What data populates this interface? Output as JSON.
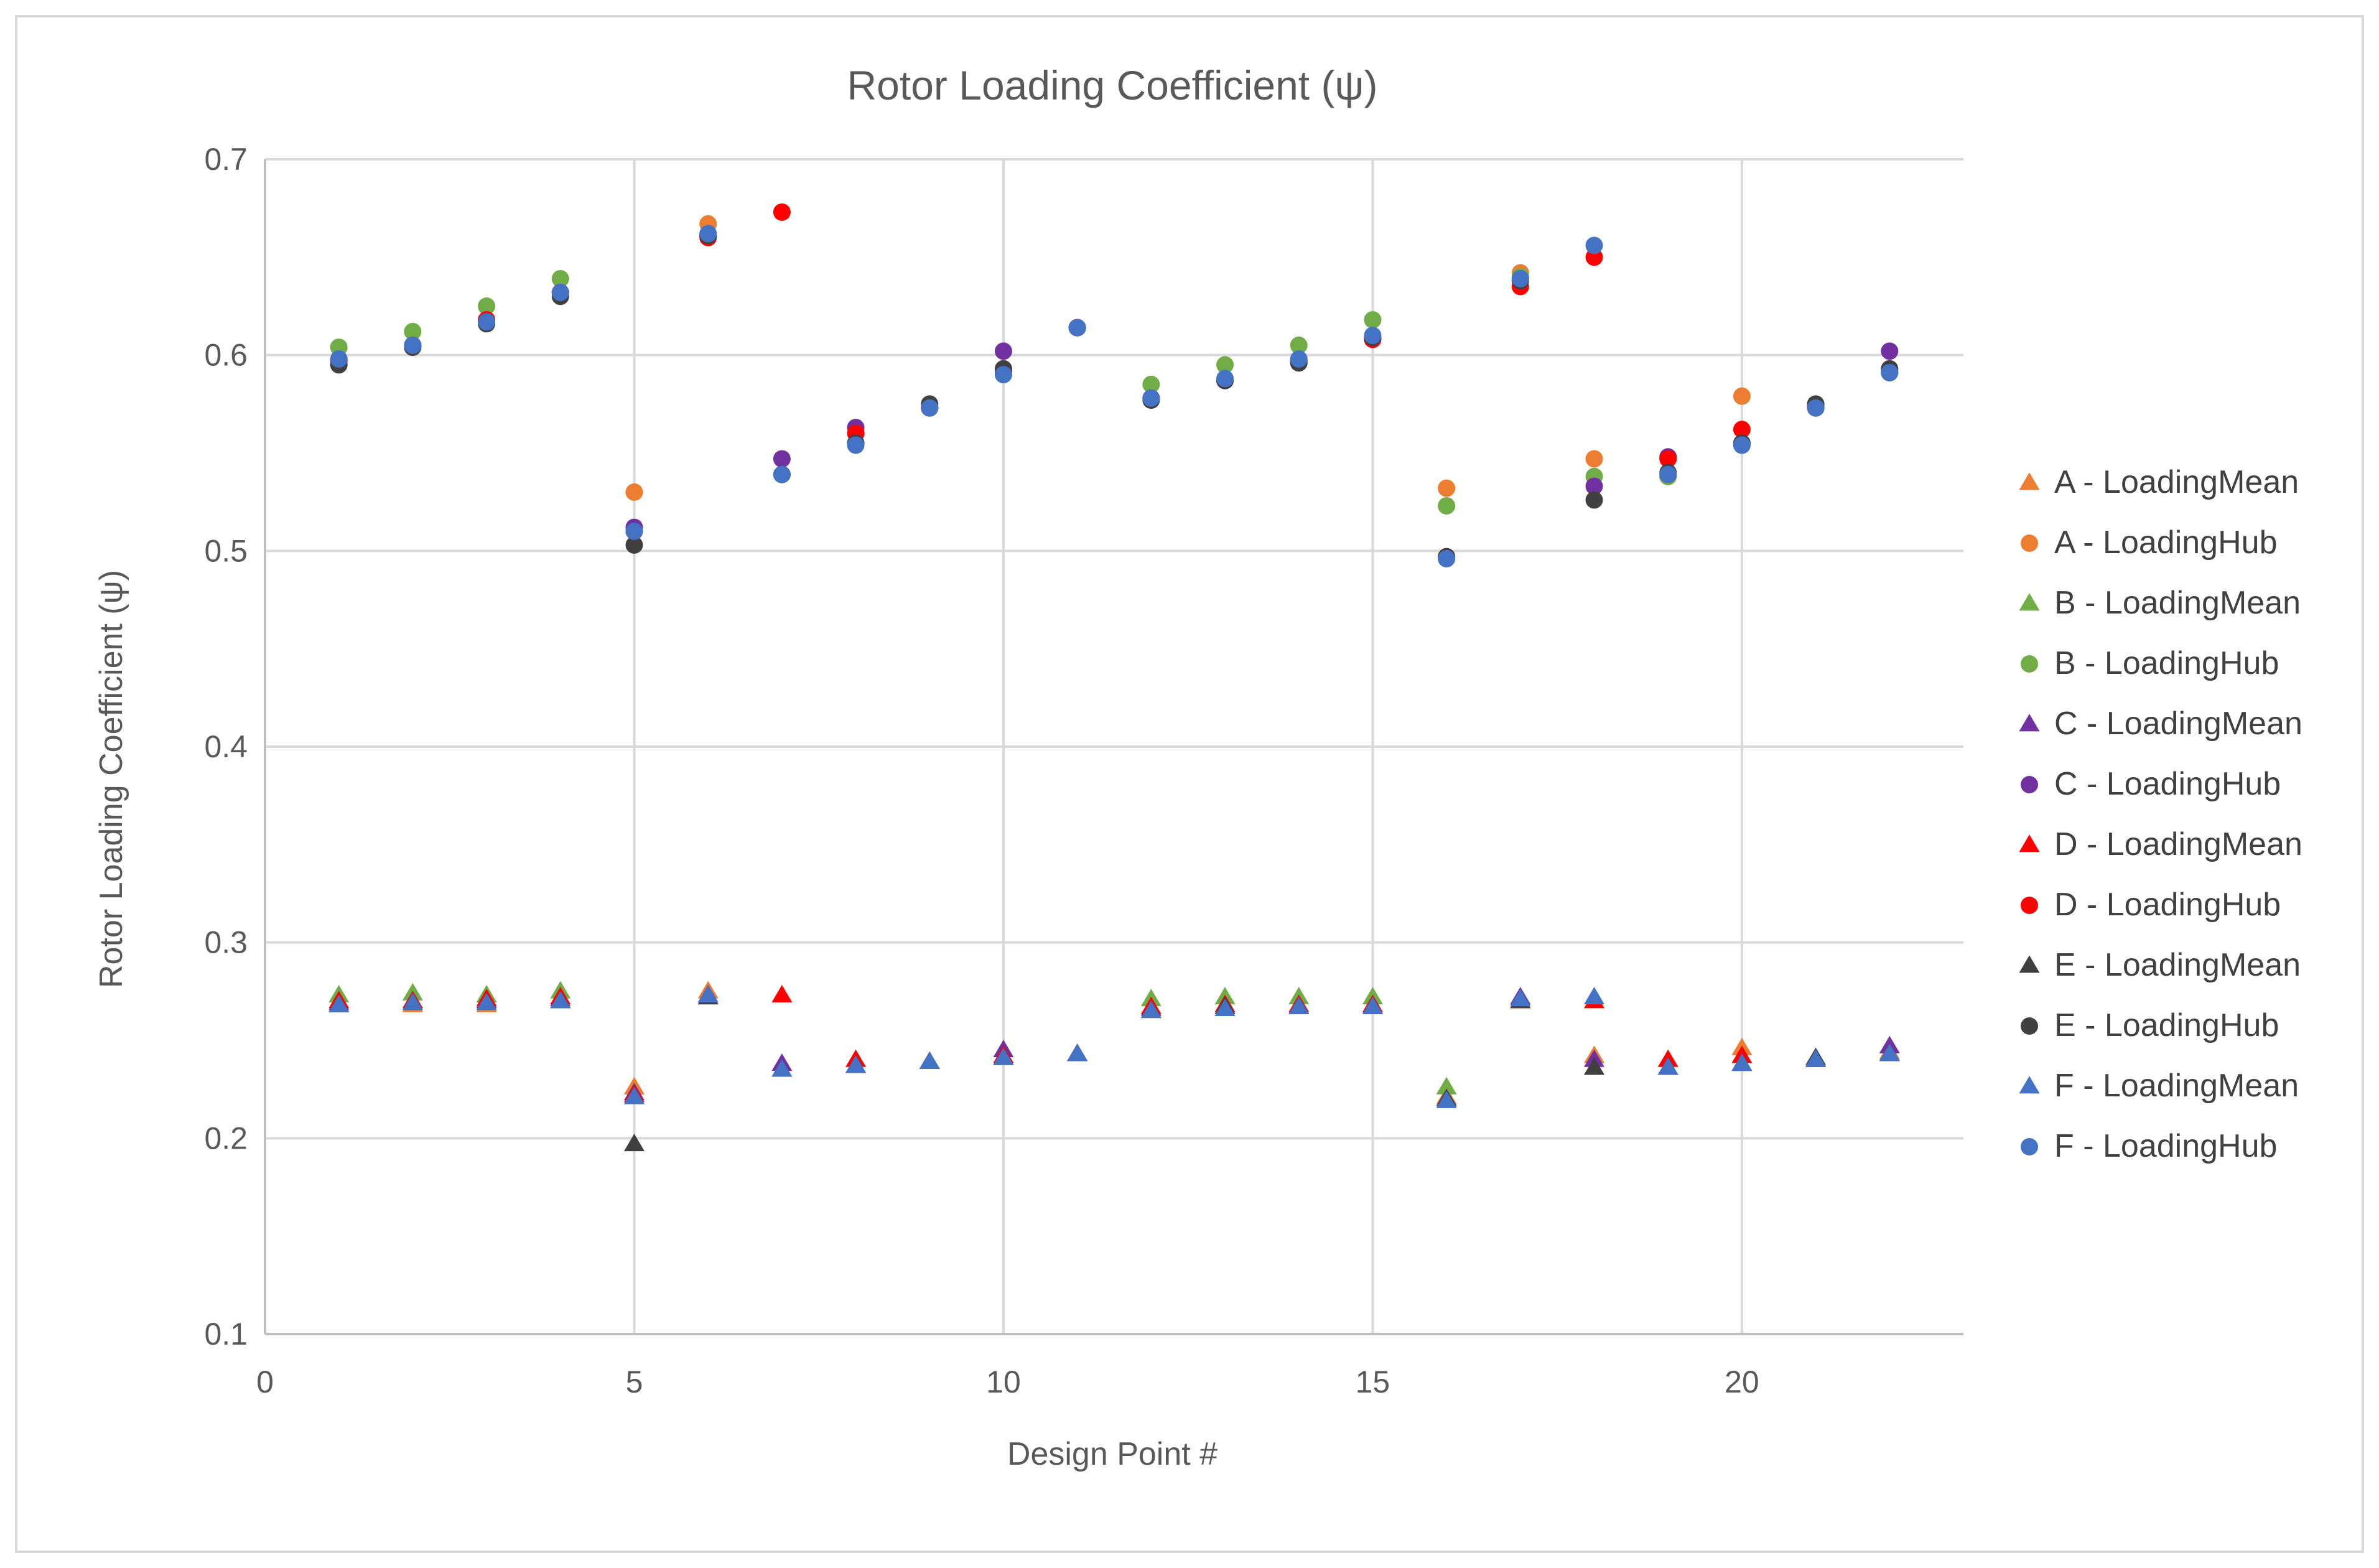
{
  "chart_data": {
    "type": "scatter",
    "title": "Rotor Loading Coefficient (ψ)",
    "xlabel": "Design Point #",
    "ylabel": "Rotor Loading Coefficient (ψ)",
    "xlim": [
      0,
      23
    ],
    "ylim": [
      0.1,
      0.7
    ],
    "xticks": [
      "0",
      "5",
      "10",
      "15",
      "20"
    ],
    "yticks": [
      "0.1",
      "0.2",
      "0.3",
      "0.4",
      "0.5",
      "0.6",
      "0.7"
    ],
    "grid": true,
    "legend_position": "right",
    "series": [
      {
        "name": "A - LoadingMean",
        "marker": "triangle",
        "color": "#ED7D31",
        "x": [
          1,
          2,
          3,
          4,
          5,
          6,
          7,
          8,
          9,
          10,
          11,
          12,
          13,
          14,
          15,
          16,
          17,
          18,
          19,
          20,
          21,
          22
        ],
        "y": [
          0.268,
          0.268,
          0.268,
          0.27,
          0.226,
          0.275,
          0.235,
          0.237,
          0.239,
          0.241,
          0.243,
          0.265,
          0.267,
          0.267,
          0.267,
          0.221,
          0.27,
          0.242,
          0.236,
          0.246,
          0.24,
          0.244
        ]
      },
      {
        "name": "A - LoadingHub",
        "marker": "circle",
        "color": "#ED7D31",
        "x": [
          1,
          2,
          3,
          4,
          5,
          6,
          7,
          8,
          9,
          10,
          11,
          12,
          13,
          14,
          15,
          16,
          17,
          18,
          19,
          20,
          21,
          22
        ],
        "y": [
          0.597,
          0.605,
          0.618,
          0.632,
          0.53,
          0.667,
          0.539,
          0.555,
          0.573,
          0.591,
          0.614,
          0.578,
          0.587,
          0.597,
          0.609,
          0.532,
          0.642,
          0.547,
          0.538,
          0.579,
          0.573,
          0.591
        ]
      },
      {
        "name": "B - LoadingMean",
        "marker": "triangle",
        "color": "#70AD47",
        "x": [
          1,
          2,
          3,
          4,
          5,
          6,
          7,
          8,
          9,
          10,
          11,
          12,
          13,
          14,
          15,
          16,
          17,
          18,
          19,
          20,
          21,
          22
        ],
        "y": [
          0.273,
          0.274,
          0.273,
          0.275,
          0.222,
          0.272,
          0.235,
          0.237,
          0.239,
          0.241,
          0.243,
          0.271,
          0.272,
          0.272,
          0.272,
          0.226,
          0.271,
          0.236,
          0.236,
          0.238,
          0.24,
          0.243
        ]
      },
      {
        "name": "B - LoadingHub",
        "marker": "circle",
        "color": "#70AD47",
        "x": [
          1,
          2,
          3,
          4,
          5,
          6,
          7,
          8,
          9,
          10,
          11,
          12,
          13,
          14,
          15,
          16,
          17,
          18,
          19,
          20,
          21,
          22
        ],
        "y": [
          0.604,
          0.612,
          0.625,
          0.639,
          0.51,
          0.662,
          0.539,
          0.555,
          0.573,
          0.591,
          0.614,
          0.585,
          0.595,
          0.605,
          0.618,
          0.523,
          0.64,
          0.538,
          0.538,
          0.554,
          0.573,
          0.591
        ]
      },
      {
        "name": "C - LoadingMean",
        "marker": "triangle",
        "color": "#7030A0",
        "x": [
          1,
          2,
          3,
          4,
          5,
          6,
          7,
          8,
          9,
          10,
          11,
          12,
          13,
          14,
          15,
          16,
          17,
          18,
          19,
          20,
          21,
          22
        ],
        "y": [
          0.269,
          0.27,
          0.27,
          0.271,
          0.223,
          0.272,
          0.238,
          0.237,
          0.239,
          0.245,
          0.243,
          0.266,
          0.268,
          0.268,
          0.268,
          0.22,
          0.272,
          0.24,
          0.236,
          0.238,
          0.24,
          0.247
        ]
      },
      {
        "name": "C - LoadingHub",
        "marker": "circle",
        "color": "#7030A0",
        "x": [
          1,
          2,
          3,
          4,
          5,
          6,
          7,
          8,
          9,
          10,
          11,
          12,
          13,
          14,
          15,
          16,
          17,
          18,
          19,
          20,
          21,
          22
        ],
        "y": [
          0.597,
          0.605,
          0.618,
          0.632,
          0.512,
          0.661,
          0.547,
          0.563,
          0.573,
          0.602,
          0.614,
          0.578,
          0.587,
          0.597,
          0.609,
          0.497,
          0.639,
          0.533,
          0.548,
          0.555,
          0.574,
          0.602
        ]
      },
      {
        "name": "D - LoadingMean",
        "marker": "triangle",
        "color": "#FF0000",
        "x": [
          1,
          2,
          3,
          4,
          5,
          6,
          7,
          8,
          9,
          10,
          11,
          12,
          13,
          14,
          15,
          16,
          17,
          18,
          19,
          20,
          21,
          22
        ],
        "y": [
          0.27,
          0.27,
          0.271,
          0.272,
          0.222,
          0.273,
          0.273,
          0.24,
          0.239,
          0.242,
          0.243,
          0.267,
          0.268,
          0.268,
          0.268,
          0.22,
          0.27,
          0.27,
          0.24,
          0.242,
          0.24,
          0.243
        ]
      },
      {
        "name": "D - LoadingHub",
        "marker": "circle",
        "color": "#FF0000",
        "x": [
          1,
          2,
          3,
          4,
          5,
          6,
          7,
          8,
          9,
          10,
          11,
          12,
          13,
          14,
          15,
          16,
          17,
          18,
          19,
          20,
          21,
          22
        ],
        "y": [
          0.597,
          0.605,
          0.618,
          0.632,
          0.51,
          0.66,
          0.673,
          0.56,
          0.573,
          0.592,
          0.614,
          0.578,
          0.587,
          0.597,
          0.608,
          0.497,
          0.635,
          0.65,
          0.547,
          0.562,
          0.573,
          0.592
        ]
      },
      {
        "name": "E - LoadingMean",
        "marker": "triangle",
        "color": "#404040",
        "x": [
          1,
          2,
          3,
          4,
          5,
          6,
          7,
          8,
          9,
          10,
          11,
          12,
          13,
          14,
          15,
          16,
          17,
          18,
          19,
          20,
          21,
          22
        ],
        "y": [
          0.268,
          0.269,
          0.269,
          0.27,
          0.197,
          0.272,
          0.235,
          0.237,
          0.239,
          0.241,
          0.243,
          0.265,
          0.267,
          0.267,
          0.267,
          0.22,
          0.27,
          0.236,
          0.236,
          0.238,
          0.241,
          0.243
        ]
      },
      {
        "name": "E - LoadingHub",
        "marker": "circle",
        "color": "#404040",
        "x": [
          1,
          2,
          3,
          4,
          5,
          6,
          7,
          8,
          9,
          10,
          11,
          12,
          13,
          14,
          15,
          16,
          17,
          18,
          19,
          20,
          21,
          22
        ],
        "y": [
          0.595,
          0.604,
          0.616,
          0.63,
          0.503,
          0.661,
          0.539,
          0.555,
          0.575,
          0.593,
          0.614,
          0.577,
          0.587,
          0.596,
          0.609,
          0.497,
          0.638,
          0.526,
          0.54,
          0.555,
          0.575,
          0.593
        ]
      },
      {
        "name": "F - LoadingMean",
        "marker": "triangle",
        "color": "#4472C4",
        "x": [
          1,
          2,
          3,
          4,
          5,
          6,
          7,
          8,
          9,
          10,
          11,
          12,
          13,
          14,
          15,
          16,
          17,
          18,
          19,
          20,
          21,
          22
        ],
        "y": [
          0.268,
          0.269,
          0.269,
          0.27,
          0.221,
          0.273,
          0.235,
          0.237,
          0.239,
          0.241,
          0.243,
          0.265,
          0.266,
          0.267,
          0.267,
          0.219,
          0.271,
          0.272,
          0.236,
          0.238,
          0.24,
          0.243
        ]
      },
      {
        "name": "F - LoadingHub",
        "marker": "circle",
        "color": "#4472C4",
        "x": [
          1,
          2,
          3,
          4,
          5,
          6,
          7,
          8,
          9,
          10,
          11,
          12,
          13,
          14,
          15,
          16,
          17,
          18,
          19,
          20,
          21,
          22
        ],
        "y": [
          0.598,
          0.605,
          0.617,
          0.632,
          0.51,
          0.662,
          0.539,
          0.554,
          0.573,
          0.59,
          0.614,
          0.578,
          0.588,
          0.598,
          0.61,
          0.496,
          0.639,
          0.656,
          0.539,
          0.554,
          0.573,
          0.591
        ]
      }
    ]
  }
}
